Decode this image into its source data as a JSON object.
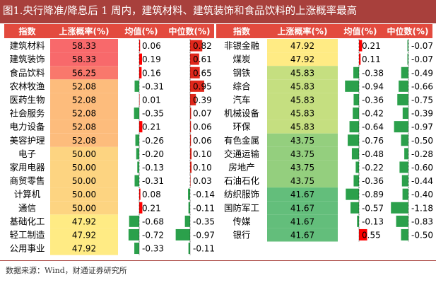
{
  "title": "图1.央行降准/降息后 1 周内，建筑材料、建筑装饰和食品饮料的上涨概率最高",
  "source": "数据来源：Wind，财通证券研究所",
  "colors": {
    "title_bg": "#a8403c",
    "header_bg": "#e34a3e",
    "median_bar": "#e0271b",
    "mean_bar": "#2e9e4c",
    "up_bar": "#ff0000",
    "down_bar": "#2ba04b"
  },
  "chart_data": {
    "type": "table",
    "columns": [
      "指数",
      "上涨概率(%)",
      "均值(%)",
      "中位数(%)"
    ],
    "tables": [
      {
        "rows": [
          {
            "name": "建筑材料",
            "prob": "58.33",
            "mean": "0.06",
            "median": "0.82"
          },
          {
            "name": "建筑装饰",
            "prob": "58.33",
            "mean": "0.19",
            "median": "0.61"
          },
          {
            "name": "食品饮料",
            "prob": "56.25",
            "mean": "0.16",
            "median": "0.65"
          },
          {
            "name": "农林牧渔",
            "prob": "52.08",
            "mean": "-0.31",
            "median": "0.95"
          },
          {
            "name": "医药生物",
            "prob": "52.08",
            "mean": "0.01",
            "median": "0.39"
          },
          {
            "name": "社会服务",
            "prob": "52.08",
            "mean": "-0.35",
            "median": "0.07"
          },
          {
            "name": "电力设备",
            "prob": "52.08",
            "mean": "0.21",
            "median": "0.06"
          },
          {
            "name": "美容护理",
            "prob": "52.08",
            "mean": "-0.26",
            "median": "0.06"
          },
          {
            "name": "电子",
            "prob": "50.00",
            "mean": "-0.20",
            "median": "0.10"
          },
          {
            "name": "家用电器",
            "prob": "50.00",
            "mean": "-0.13",
            "median": "0.10"
          },
          {
            "name": "商贸零售",
            "prob": "50.00",
            "mean": "-0.31",
            "median": "0.03"
          },
          {
            "name": "计算机",
            "prob": "50.00",
            "mean": "0.08",
            "median": "-0.14"
          },
          {
            "name": "通信",
            "prob": "50.00",
            "mean": "0.21",
            "median": "-0.11"
          },
          {
            "name": "基础化工",
            "prob": "47.92",
            "mean": "-0.68",
            "median": "-0.35"
          },
          {
            "name": "轻工制造",
            "prob": "47.92",
            "mean": "-0.72",
            "median": "-0.97"
          },
          {
            "name": "公用事业",
            "prob": "47.92",
            "mean": "-0.33",
            "median": "-0.11"
          }
        ]
      },
      {
        "rows": [
          {
            "name": "非银金融",
            "prob": "47.92",
            "mean": "0.21",
            "median": "-0.07"
          },
          {
            "name": "煤炭",
            "prob": "47.92",
            "mean": "0.11",
            "median": "-0.07"
          },
          {
            "name": "钢铁",
            "prob": "45.83",
            "mean": "-0.38",
            "median": "-0.49"
          },
          {
            "name": "综合",
            "prob": "45.83",
            "mean": "-0.94",
            "median": "-0.66"
          },
          {
            "name": "汽车",
            "prob": "45.83",
            "mean": "-0.36",
            "median": "-0.75"
          },
          {
            "name": "机械设备",
            "prob": "45.83",
            "mean": "-0.42",
            "median": "-0.39"
          },
          {
            "name": "环保",
            "prob": "45.83",
            "mean": "-0.64",
            "median": "-0.97"
          },
          {
            "name": "有色金属",
            "prob": "43.75",
            "mean": "-0.76",
            "median": "-0.50"
          },
          {
            "name": "交通运输",
            "prob": "43.75",
            "mean": "-0.48",
            "median": "-0.28"
          },
          {
            "name": "房地产",
            "prob": "43.75",
            "mean": "-0.22",
            "median": "-0.60"
          },
          {
            "name": "石油石化",
            "prob": "43.75",
            "mean": "-0.36",
            "median": "-0.44"
          },
          {
            "name": "纺织服饰",
            "prob": "41.67",
            "mean": "-0.89",
            "median": "-0.40"
          },
          {
            "name": "国防军工",
            "prob": "41.67",
            "mean": "-0.57",
            "median": "-1.18"
          },
          {
            "name": "传媒",
            "prob": "41.67",
            "mean": "-0.13",
            "median": "-0.83"
          },
          {
            "name": "银行",
            "prob": "41.67",
            "mean": "0.55",
            "median": "-0.50"
          }
        ]
      }
    ]
  }
}
